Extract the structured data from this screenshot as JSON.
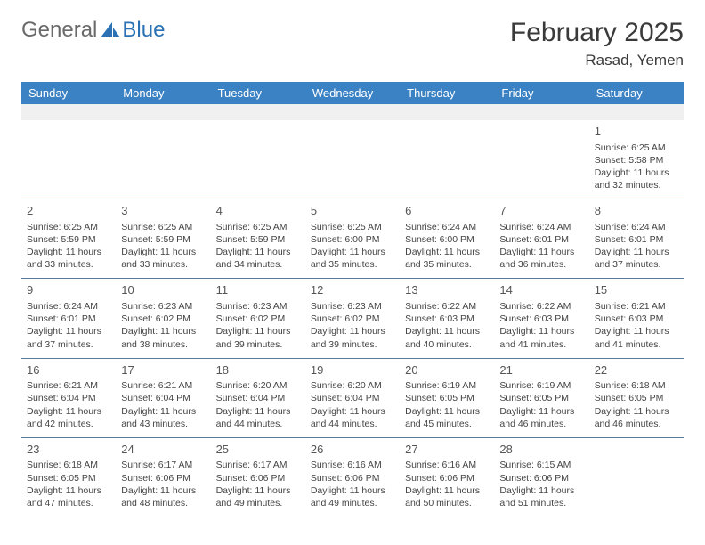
{
  "logo": {
    "text1": "General",
    "text2": "Blue"
  },
  "title": "February 2025",
  "location": "Rasad, Yemen",
  "colors": {
    "header_bg": "#3b82c4",
    "header_text": "#ffffff",
    "border": "#5a7a9a",
    "logo_gray": "#6a6a6a",
    "logo_blue": "#2a72b5"
  },
  "weekdays": [
    "Sunday",
    "Monday",
    "Tuesday",
    "Wednesday",
    "Thursday",
    "Friday",
    "Saturday"
  ],
  "days": {
    "1": {
      "sunrise": "Sunrise: 6:25 AM",
      "sunset": "Sunset: 5:58 PM",
      "daylight": "Daylight: 11 hours and 32 minutes."
    },
    "2": {
      "sunrise": "Sunrise: 6:25 AM",
      "sunset": "Sunset: 5:59 PM",
      "daylight": "Daylight: 11 hours and 33 minutes."
    },
    "3": {
      "sunrise": "Sunrise: 6:25 AM",
      "sunset": "Sunset: 5:59 PM",
      "daylight": "Daylight: 11 hours and 33 minutes."
    },
    "4": {
      "sunrise": "Sunrise: 6:25 AM",
      "sunset": "Sunset: 5:59 PM",
      "daylight": "Daylight: 11 hours and 34 minutes."
    },
    "5": {
      "sunrise": "Sunrise: 6:25 AM",
      "sunset": "Sunset: 6:00 PM",
      "daylight": "Daylight: 11 hours and 35 minutes."
    },
    "6": {
      "sunrise": "Sunrise: 6:24 AM",
      "sunset": "Sunset: 6:00 PM",
      "daylight": "Daylight: 11 hours and 35 minutes."
    },
    "7": {
      "sunrise": "Sunrise: 6:24 AM",
      "sunset": "Sunset: 6:01 PM",
      "daylight": "Daylight: 11 hours and 36 minutes."
    },
    "8": {
      "sunrise": "Sunrise: 6:24 AM",
      "sunset": "Sunset: 6:01 PM",
      "daylight": "Daylight: 11 hours and 37 minutes."
    },
    "9": {
      "sunrise": "Sunrise: 6:24 AM",
      "sunset": "Sunset: 6:01 PM",
      "daylight": "Daylight: 11 hours and 37 minutes."
    },
    "10": {
      "sunrise": "Sunrise: 6:23 AM",
      "sunset": "Sunset: 6:02 PM",
      "daylight": "Daylight: 11 hours and 38 minutes."
    },
    "11": {
      "sunrise": "Sunrise: 6:23 AM",
      "sunset": "Sunset: 6:02 PM",
      "daylight": "Daylight: 11 hours and 39 minutes."
    },
    "12": {
      "sunrise": "Sunrise: 6:23 AM",
      "sunset": "Sunset: 6:02 PM",
      "daylight": "Daylight: 11 hours and 39 minutes."
    },
    "13": {
      "sunrise": "Sunrise: 6:22 AM",
      "sunset": "Sunset: 6:03 PM",
      "daylight": "Daylight: 11 hours and 40 minutes."
    },
    "14": {
      "sunrise": "Sunrise: 6:22 AM",
      "sunset": "Sunset: 6:03 PM",
      "daylight": "Daylight: 11 hours and 41 minutes."
    },
    "15": {
      "sunrise": "Sunrise: 6:21 AM",
      "sunset": "Sunset: 6:03 PM",
      "daylight": "Daylight: 11 hours and 41 minutes."
    },
    "16": {
      "sunrise": "Sunrise: 6:21 AM",
      "sunset": "Sunset: 6:04 PM",
      "daylight": "Daylight: 11 hours and 42 minutes."
    },
    "17": {
      "sunrise": "Sunrise: 6:21 AM",
      "sunset": "Sunset: 6:04 PM",
      "daylight": "Daylight: 11 hours and 43 minutes."
    },
    "18": {
      "sunrise": "Sunrise: 6:20 AM",
      "sunset": "Sunset: 6:04 PM",
      "daylight": "Daylight: 11 hours and 44 minutes."
    },
    "19": {
      "sunrise": "Sunrise: 6:20 AM",
      "sunset": "Sunset: 6:04 PM",
      "daylight": "Daylight: 11 hours and 44 minutes."
    },
    "20": {
      "sunrise": "Sunrise: 6:19 AM",
      "sunset": "Sunset: 6:05 PM",
      "daylight": "Daylight: 11 hours and 45 minutes."
    },
    "21": {
      "sunrise": "Sunrise: 6:19 AM",
      "sunset": "Sunset: 6:05 PM",
      "daylight": "Daylight: 11 hours and 46 minutes."
    },
    "22": {
      "sunrise": "Sunrise: 6:18 AM",
      "sunset": "Sunset: 6:05 PM",
      "daylight": "Daylight: 11 hours and 46 minutes."
    },
    "23": {
      "sunrise": "Sunrise: 6:18 AM",
      "sunset": "Sunset: 6:05 PM",
      "daylight": "Daylight: 11 hours and 47 minutes."
    },
    "24": {
      "sunrise": "Sunrise: 6:17 AM",
      "sunset": "Sunset: 6:06 PM",
      "daylight": "Daylight: 11 hours and 48 minutes."
    },
    "25": {
      "sunrise": "Sunrise: 6:17 AM",
      "sunset": "Sunset: 6:06 PM",
      "daylight": "Daylight: 11 hours and 49 minutes."
    },
    "26": {
      "sunrise": "Sunrise: 6:16 AM",
      "sunset": "Sunset: 6:06 PM",
      "daylight": "Daylight: 11 hours and 49 minutes."
    },
    "27": {
      "sunrise": "Sunrise: 6:16 AM",
      "sunset": "Sunset: 6:06 PM",
      "daylight": "Daylight: 11 hours and 50 minutes."
    },
    "28": {
      "sunrise": "Sunrise: 6:15 AM",
      "sunset": "Sunset: 6:06 PM",
      "daylight": "Daylight: 11 hours and 51 minutes."
    }
  },
  "grid": [
    [
      null,
      null,
      null,
      null,
      null,
      null,
      "1"
    ],
    [
      "2",
      "3",
      "4",
      "5",
      "6",
      "7",
      "8"
    ],
    [
      "9",
      "10",
      "11",
      "12",
      "13",
      "14",
      "15"
    ],
    [
      "16",
      "17",
      "18",
      "19",
      "20",
      "21",
      "22"
    ],
    [
      "23",
      "24",
      "25",
      "26",
      "27",
      "28",
      null
    ]
  ]
}
